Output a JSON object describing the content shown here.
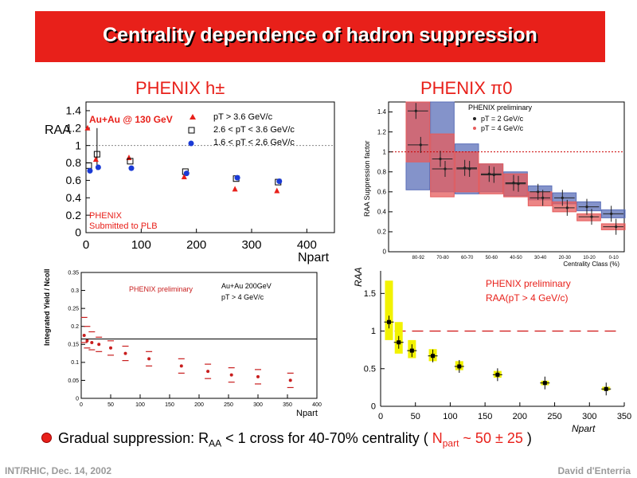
{
  "slide": {
    "title": "Centrality dependence of hadron suppression",
    "title_bg": "#e8201a",
    "panel_titles": {
      "left": "PHENIX h±",
      "right": "PHENIX π0"
    },
    "bullet": {
      "pre": "Gradual suppression: R",
      "sub_aa": "AA",
      "mid": " < 1 cross for 40-70% centrality ( ",
      "npart_n": "N",
      "npart_sub": "part",
      "npart_val": " ~ 50 ± 25",
      "post": " )"
    },
    "footer_left": "INT/RHIC, Dec. 14, 2002",
    "footer_right": "David d'Enterria"
  },
  "chart_data": [
    {
      "id": "h-charged",
      "type": "scatter",
      "ylabel": "RAA",
      "xlabel": "Npart",
      "xlim": [
        0,
        450
      ],
      "ylim": [
        0,
        1.5
      ],
      "xticks": [
        "0",
        "100",
        "200",
        "300",
        "400"
      ],
      "yticks": [
        "0",
        "0.2",
        "0.4",
        "0.6",
        "0.8",
        "1",
        "1.2",
        "1.4"
      ],
      "reference_line": 1,
      "annotations": [
        "Au+Au @ 130 GeV",
        "PHENIX",
        "Submitted to PLB"
      ],
      "legend": [
        "pT > 3.6 GeV/c",
        "2.6 < pT < 3.6 GeV/c",
        "1.6 < pT < 2.6 GeV/c"
      ],
      "series": [
        {
          "name": "pT > 3.6 GeV/c",
          "marker": "triangle",
          "color": "#e8201a",
          "x": [
            5,
            20,
            80,
            180,
            272,
            348
          ],
          "y": [
            1.2,
            0.84,
            0.86,
            0.64,
            0.5,
            0.48
          ]
        },
        {
          "name": "2.6 < pT < 3.6 GeV/c",
          "marker": "open-square",
          "color": "#000000",
          "x": [
            5,
            20,
            80,
            180,
            272,
            348
          ],
          "y": [
            0.77,
            0.9,
            0.82,
            0.7,
            0.62,
            0.58
          ]
        },
        {
          "name": "1.6 < pT < 2.6 GeV/c",
          "marker": "circle",
          "color": "#1a3ad6",
          "x": [
            5,
            20,
            80,
            180,
            272,
            348
          ],
          "y": [
            0.71,
            0.75,
            0.74,
            0.68,
            0.63,
            0.59
          ]
        }
      ]
    },
    {
      "id": "pi0-centrality",
      "type": "bar",
      "ylabel": "RAA Suppression factor",
      "xlabel": "Centrality Class (%)",
      "ylim": [
        0,
        1.5
      ],
      "yticks": [
        "0",
        "0.2",
        "0.4",
        "0.6",
        "0.8",
        "1",
        "1.2",
        "1.4"
      ],
      "categories": [
        "80-92",
        "70-80",
        "60-70",
        "50-60",
        "40-50",
        "30-40",
        "20-30",
        "10-20",
        "0-10"
      ],
      "reference_line": 1,
      "legend": [
        "PHENIX preliminary",
        "pT = 2 GeV/c",
        "pT = 4 GeV/c"
      ],
      "series": [
        {
          "name": "pT = 2 GeV/c",
          "color": "#5b6fb8",
          "values": [
            1.41,
            0.93,
            0.84,
            0.78,
            0.69,
            0.6,
            0.54,
            0.45,
            0.38
          ],
          "band_lo": [
            0.62,
            0.6,
            0.58,
            0.6,
            0.56,
            0.52,
            0.48,
            0.41,
            0.34
          ],
          "band_hi": [
            1.5,
            1.5,
            1.08,
            0.88,
            0.8,
            0.66,
            0.59,
            0.5,
            0.42
          ]
        },
        {
          "name": "pT = 4 GeV/c",
          "color": "#e65c5c",
          "values": [
            1.07,
            0.83,
            0.83,
            0.77,
            0.68,
            0.54,
            0.44,
            0.35,
            0.25
          ],
          "band_lo": [
            0.9,
            0.55,
            0.6,
            0.58,
            0.55,
            0.46,
            0.4,
            0.31,
            0.22
          ],
          "band_hi": [
            1.5,
            1.18,
            1.0,
            0.88,
            0.78,
            0.6,
            0.5,
            0.38,
            0.28
          ]
        }
      ]
    },
    {
      "id": "integrated-yield",
      "type": "scatter",
      "ylabel": "Integrated Yield / Ncoll",
      "xlabel": "Npart",
      "xlim": [
        0,
        400
      ],
      "ylim": [
        0,
        0.35
      ],
      "xticks": [
        "0",
        "50",
        "100",
        "150",
        "200",
        "250",
        "300",
        "350",
        "400"
      ],
      "yticks": [
        "0",
        "0.05",
        "0.1",
        "0.15",
        "0.2",
        "0.25",
        "0.3",
        "0.35"
      ],
      "reference_line": 0.165,
      "annotations": [
        "PHENIX preliminary",
        "Au+Au 200GeV",
        "pT > 4 GeV/c"
      ],
      "series": [
        {
          "name": "",
          "color": "#c81e1e",
          "x": [
            5,
            10,
            18,
            30,
            50,
            75,
            115,
            170,
            215,
            255,
            300,
            355
          ],
          "y": [
            0.175,
            0.16,
            0.155,
            0.15,
            0.14,
            0.125,
            0.11,
            0.09,
            0.075,
            0.065,
            0.06,
            0.05
          ]
        }
      ]
    },
    {
      "id": "raa-yellow",
      "type": "scatter",
      "ylabel": "RAA",
      "xlabel": "Npart",
      "xlim": [
        0,
        350
      ],
      "ylim": [
        0,
        1.8
      ],
      "xticks": [
        "0",
        "50",
        "100",
        "150",
        "200",
        "250",
        "300",
        "350"
      ],
      "yticks": [
        "0",
        "0.5",
        "1",
        "1.5"
      ],
      "reference_line": 1,
      "annotations": [
        "PHENIX preliminary",
        "RAA(pT > 4 GeV/c)"
      ],
      "series": [
        {
          "name": "",
          "color": "#000000",
          "band_color": "#f2f200",
          "x": [
            12,
            26,
            45,
            75,
            113,
            168,
            236,
            324
          ],
          "y": [
            1.12,
            0.85,
            0.74,
            0.67,
            0.53,
            0.42,
            0.31,
            0.23
          ],
          "band_lo": [
            0.88,
            0.7,
            0.64,
            0.6,
            0.48,
            0.38,
            0.28,
            0.21
          ],
          "band_hi": [
            1.67,
            1.12,
            0.88,
            0.76,
            0.6,
            0.47,
            0.34,
            0.26
          ]
        }
      ]
    }
  ]
}
